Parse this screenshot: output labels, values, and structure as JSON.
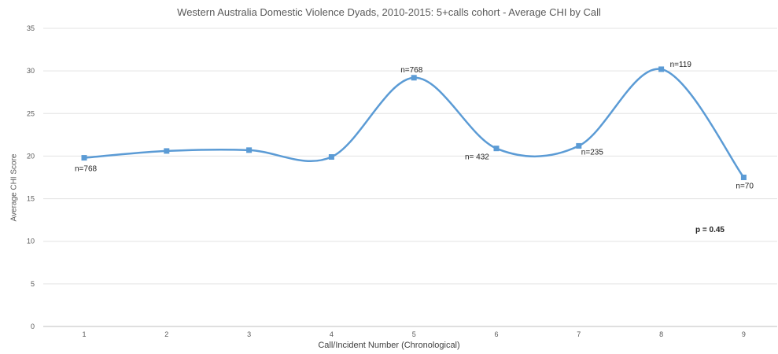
{
  "chart_data": {
    "type": "line",
    "title": "Western Australia Domestic Violence Dyads, 2010-2015: 5+calls cohort - Average CHI by Call",
    "xlabel": "Call/Incident Number (Chronological)",
    "ylabel": "Average CHI Score",
    "categories": [
      "1",
      "2",
      "3",
      "4",
      "5",
      "6",
      "7",
      "8",
      "9"
    ],
    "series": [
      {
        "values": [
          19.8,
          20.6,
          20.7,
          19.9,
          29.2,
          20.9,
          21.2,
          30.2,
          17.5
        ],
        "color": "#5b9bd5"
      }
    ],
    "data_labels": [
      {
        "index": 0,
        "text": "n=768"
      },
      {
        "index": 4,
        "text": "n=768"
      },
      {
        "index": 5,
        "text": "n= 432"
      },
      {
        "index": 6,
        "text": "n=235"
      },
      {
        "index": 7,
        "text": "n=119"
      },
      {
        "index": 8,
        "text": "n=70"
      }
    ],
    "annotation": "p = 0.45",
    "ylim": [
      0,
      35
    ],
    "yticks": [
      0,
      5,
      10,
      15,
      20,
      25,
      30,
      35
    ],
    "grid": true,
    "smooth": true
  }
}
